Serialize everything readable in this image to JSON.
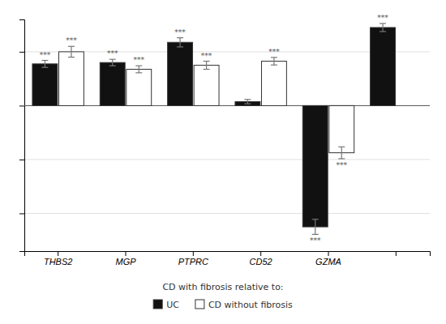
{
  "chart_data": {
    "type": "bar",
    "categories": [
      "THBS2",
      "MGP",
      "PTPRC",
      "CD52",
      "GZMA",
      null
    ],
    "series": [
      {
        "name": "UC",
        "color": "#111111",
        "values": [
          1.55,
          1.6,
          2.35,
          0.15,
          -4.5,
          2.9
        ],
        "errors": [
          0.13,
          0.12,
          0.17,
          0.08,
          0.28,
          0.15
        ],
        "stars": [
          "***",
          "***",
          "***",
          null,
          "***",
          "***"
        ]
      },
      {
        "name": "CD without fibrosis",
        "color": "#ffffff",
        "values": [
          2.0,
          1.35,
          1.5,
          1.65,
          -1.75,
          null
        ],
        "errors": [
          0.2,
          0.13,
          0.15,
          0.14,
          0.22,
          null
        ],
        "stars": [
          "***",
          "***",
          "***",
          "***",
          "***",
          null
        ]
      }
    ],
    "ylim": [
      -5.4,
      3.2
    ],
    "yticks": [
      -4,
      -2,
      0,
      2
    ],
    "grid": true,
    "tick_labels": "x",
    "legend": "bottom",
    "legend_title": "CD with fibrosis relative to:"
  }
}
